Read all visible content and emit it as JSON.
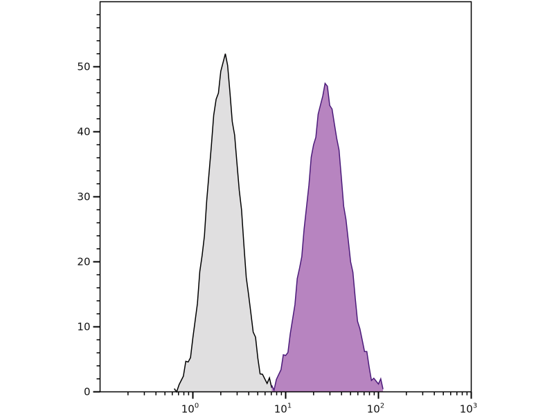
{
  "chart_data": {
    "type": "area",
    "title": "",
    "xlabel": "",
    "ylabel": "",
    "xscale": "log",
    "xlim": [
      0.1,
      1000
    ],
    "ylim": [
      0,
      60
    ],
    "grid": false,
    "legend": "none",
    "x_tick_labels": [
      {
        "base": "10",
        "exp": "0",
        "value": 1
      },
      {
        "base": "10",
        "exp": "1",
        "value": 10
      },
      {
        "base": "10",
        "exp": "2",
        "value": 100
      },
      {
        "base": "10",
        "exp": "3",
        "value": 1000
      }
    ],
    "y_tick_labels": [
      "0",
      "10",
      "20",
      "30",
      "40",
      "50"
    ],
    "y_ticks": [
      0,
      10,
      20,
      30,
      40,
      50
    ],
    "series": [
      {
        "color_fill": "#e0dfe0",
        "color_line": "#000000",
        "x": [
          0.63,
          0.71,
          0.79,
          0.89,
          1.0,
          1.12,
          1.26,
          1.41,
          1.58,
          1.78,
          2.0,
          2.24,
          2.51,
          2.82,
          3.16,
          3.55,
          3.98,
          4.47,
          5.01,
          5.62,
          6.31,
          7.08
        ],
        "y": [
          0.5,
          1.1,
          2.4,
          4.6,
          8.3,
          13.6,
          21,
          29.4,
          37.7,
          45,
          49.3,
          52,
          46,
          39.5,
          31,
          22.6,
          15,
          9.2,
          5.2,
          2.7,
          1.3,
          0.6
        ]
      },
      {
        "color_fill": "#b784c0",
        "color_line": "#4b1a7a",
        "x": [
          7.08,
          7.94,
          8.91,
          10.0,
          11.2,
          12.6,
          14.1,
          15.8,
          17.8,
          20.0,
          22.4,
          25.1,
          28.2,
          31.6,
          35.5,
          39.8,
          44.7,
          50.1,
          56.2,
          63.1,
          70.8,
          79.4,
          89.1,
          100,
          112
        ],
        "y": [
          1.0,
          1.9,
          3.4,
          5.6,
          8.9,
          13.4,
          19,
          25,
          31.8,
          38,
          42.7,
          45.5,
          47,
          43.5,
          39,
          33,
          26.5,
          20,
          14.4,
          9.7,
          6.2,
          3.8,
          2.1,
          1.2,
          0.4
        ]
      }
    ]
  }
}
